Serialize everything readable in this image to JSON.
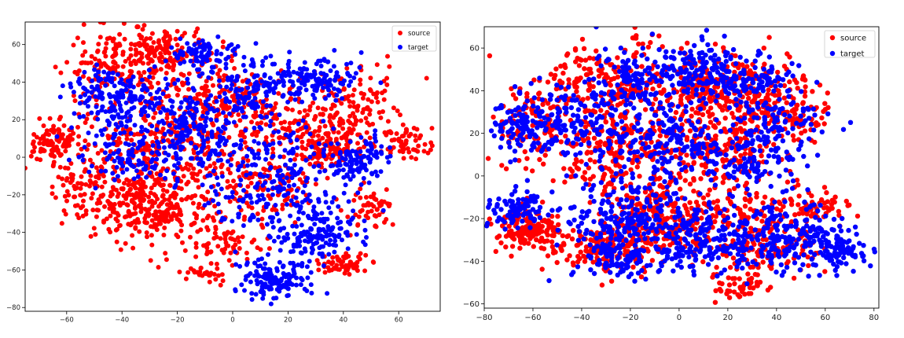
{
  "chart_data": [
    {
      "type": "scatter",
      "title": "",
      "xlabel": "",
      "ylabel": "",
      "xlim": [
        -75,
        75
      ],
      "ylim": [
        -82,
        72
      ],
      "xticks": [
        -60,
        -40,
        -20,
        0,
        20,
        40,
        60
      ],
      "yticks": [
        -80,
        -60,
        -40,
        -20,
        0,
        20,
        40,
        60
      ],
      "legend": {
        "placement": "top-right",
        "entries": [
          "source",
          "target"
        ]
      },
      "series": [
        {
          "name": "source",
          "color": "#ff0000",
          "clusters": [
            {
              "cx": -65,
              "cy": 8,
              "sx": 5,
              "sy": 5,
              "n": 90
            },
            {
              "cx": -40,
              "cy": 45,
              "sx": 10,
              "sy": 12,
              "n": 200
            },
            {
              "cx": -25,
              "cy": 58,
              "sx": 10,
              "sy": 5,
              "n": 110
            },
            {
              "cx": -30,
              "cy": -25,
              "sx": 12,
              "sy": 10,
              "n": 330
            },
            {
              "cx": -25,
              "cy": 5,
              "sx": 15,
              "sy": 10,
              "n": 220
            },
            {
              "cx": -10,
              "cy": 30,
              "sx": 10,
              "sy": 10,
              "n": 120
            },
            {
              "cx": 5,
              "cy": 30,
              "sx": 10,
              "sy": 8,
              "n": 80
            },
            {
              "cx": 10,
              "cy": -10,
              "sx": 12,
              "sy": 12,
              "n": 150
            },
            {
              "cx": 35,
              "cy": 5,
              "sx": 6,
              "sy": 6,
              "n": 120
            },
            {
              "cx": 45,
              "cy": 25,
              "sx": 8,
              "sy": 12,
              "n": 130
            },
            {
              "cx": 63,
              "cy": 8,
              "sx": 5,
              "sy": 4,
              "n": 60
            },
            {
              "cx": 50,
              "cy": -28,
              "sx": 4,
              "sy": 5,
              "n": 50
            },
            {
              "cx": 40,
              "cy": -57,
              "sx": 5,
              "sy": 3,
              "n": 60
            },
            {
              "cx": -10,
              "cy": -60,
              "sx": 4,
              "sy": 3,
              "n": 30
            },
            {
              "cx": -5,
              "cy": -45,
              "sx": 8,
              "sy": 5,
              "n": 60
            },
            {
              "cx": 20,
              "cy": 20,
              "sx": 8,
              "sy": 8,
              "n": 80
            },
            {
              "cx": -55,
              "cy": -15,
              "sx": 6,
              "sy": 8,
              "n": 60
            }
          ]
        },
        {
          "name": "target",
          "color": "#0000ff",
          "clusters": [
            {
              "cx": -10,
              "cy": 55,
              "sx": 6,
              "sy": 4,
              "n": 80
            },
            {
              "cx": -45,
              "cy": 35,
              "sx": 8,
              "sy": 6,
              "n": 100
            },
            {
              "cx": -30,
              "cy": 25,
              "sx": 12,
              "sy": 10,
              "n": 160
            },
            {
              "cx": 5,
              "cy": 35,
              "sx": 8,
              "sy": 8,
              "n": 130
            },
            {
              "cx": 30,
              "cy": 42,
              "sx": 8,
              "sy": 6,
              "n": 130
            },
            {
              "cx": -35,
              "cy": 0,
              "sx": 10,
              "sy": 8,
              "n": 110
            },
            {
              "cx": -5,
              "cy": 5,
              "sx": 10,
              "sy": 10,
              "n": 120
            },
            {
              "cx": 20,
              "cy": -5,
              "sx": 8,
              "sy": 12,
              "n": 120
            },
            {
              "cx": 45,
              "cy": -2,
              "sx": 6,
              "sy": 6,
              "n": 110
            },
            {
              "cx": 30,
              "cy": -40,
              "sx": 8,
              "sy": 8,
              "n": 160
            },
            {
              "cx": 15,
              "cy": -65,
              "sx": 7,
              "sy": 5,
              "n": 140
            },
            {
              "cx": 5,
              "cy": -25,
              "sx": 8,
              "sy": 8,
              "n": 60
            },
            {
              "cx": -15,
              "cy": 15,
              "sx": 5,
              "sy": 5,
              "n": 40
            }
          ]
        }
      ]
    },
    {
      "type": "scatter",
      "title": "",
      "xlabel": "",
      "ylabel": "",
      "xlim": [
        -80,
        82
      ],
      "ylim": [
        -62,
        70
      ],
      "xticks": [
        -80,
        -60,
        -40,
        -20,
        0,
        20,
        40,
        60,
        80
      ],
      "yticks": [
        -60,
        -40,
        -20,
        0,
        20,
        40,
        60
      ],
      "legend": {
        "placement": "top-right",
        "entries": [
          "source",
          "target"
        ]
      },
      "series": [
        {
          "name": "source",
          "color": "#ff0000",
          "clusters": [
            {
              "cx": -62,
              "cy": -25,
              "sx": 7,
              "sy": 5,
              "n": 150
            },
            {
              "cx": -60,
              "cy": 25,
              "sx": 8,
              "sy": 10,
              "n": 110
            },
            {
              "cx": -30,
              "cy": 45,
              "sx": 12,
              "sy": 10,
              "n": 200
            },
            {
              "cx": 10,
              "cy": 40,
              "sx": 10,
              "sy": 10,
              "n": 180
            },
            {
              "cx": 35,
              "cy": 40,
              "sx": 10,
              "sy": 8,
              "n": 160
            },
            {
              "cx": -20,
              "cy": 10,
              "sx": 15,
              "sy": 10,
              "n": 230
            },
            {
              "cx": 20,
              "cy": 15,
              "sx": 12,
              "sy": 10,
              "n": 150
            },
            {
              "cx": -10,
              "cy": -20,
              "sx": 12,
              "sy": 10,
              "n": 250
            },
            {
              "cx": 25,
              "cy": -20,
              "sx": 10,
              "sy": 10,
              "n": 130
            },
            {
              "cx": 55,
              "cy": -15,
              "sx": 6,
              "sy": 4,
              "n": 60
            },
            {
              "cx": -30,
              "cy": -35,
              "sx": 10,
              "sy": 5,
              "n": 140
            },
            {
              "cx": 25,
              "cy": -50,
              "sx": 6,
              "sy": 4,
              "n": 50
            },
            {
              "cx": 50,
              "cy": 25,
              "sx": 5,
              "sy": 5,
              "n": 40
            },
            {
              "cx": 40,
              "cy": -35,
              "sx": 10,
              "sy": 5,
              "n": 80
            }
          ]
        },
        {
          "name": "target",
          "color": "#0000ff",
          "clusters": [
            {
              "cx": -65,
              "cy": 25,
              "sx": 6,
              "sy": 8,
              "n": 100
            },
            {
              "cx": -65,
              "cy": -15,
              "sx": 6,
              "sy": 4,
              "n": 100
            },
            {
              "cx": -40,
              "cy": 25,
              "sx": 10,
              "sy": 10,
              "n": 160
            },
            {
              "cx": -15,
              "cy": 45,
              "sx": 10,
              "sy": 8,
              "n": 140
            },
            {
              "cx": 10,
              "cy": 50,
              "sx": 8,
              "sy": 6,
              "n": 110
            },
            {
              "cx": 30,
              "cy": 45,
              "sx": 10,
              "sy": 6,
              "n": 110
            },
            {
              "cx": -5,
              "cy": 15,
              "sx": 12,
              "sy": 10,
              "n": 170
            },
            {
              "cx": 30,
              "cy": 10,
              "sx": 10,
              "sy": 10,
              "n": 140
            },
            {
              "cx": -20,
              "cy": -20,
              "sx": 14,
              "sy": 10,
              "n": 240
            },
            {
              "cx": 10,
              "cy": -30,
              "sx": 12,
              "sy": 8,
              "n": 180
            },
            {
              "cx": 45,
              "cy": -30,
              "sx": 12,
              "sy": 8,
              "n": 200
            },
            {
              "cx": 65,
              "cy": -35,
              "sx": 6,
              "sy": 5,
              "n": 80
            },
            {
              "cx": 45,
              "cy": 25,
              "sx": 8,
              "sy": 6,
              "n": 60
            },
            {
              "cx": -25,
              "cy": -40,
              "sx": 8,
              "sy": 4,
              "n": 70
            }
          ]
        }
      ]
    }
  ]
}
